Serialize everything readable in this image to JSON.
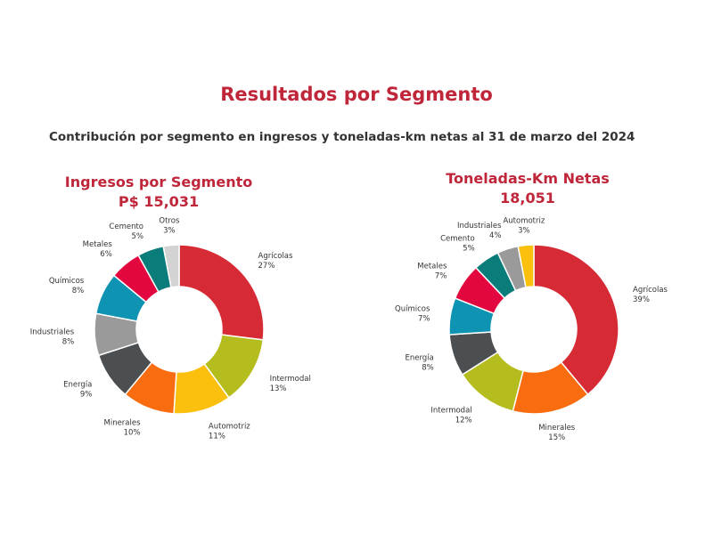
{
  "page": {
    "title": "Resultados por Segmento",
    "subtitle": "Contribución por segmento en ingresos y toneladas-km netas al 31 de marzo del 2024"
  },
  "chart_data": [
    {
      "type": "pie",
      "title": "Ingresos por Segmento",
      "subtitle": "P$ 15,031",
      "donut": true,
      "categories": [
        "Agrícolas",
        "Intermodal",
        "Automotriz",
        "Minerales",
        "Energía",
        "Industriales",
        "Químicos",
        "Metales",
        "Cemento",
        "Otros"
      ],
      "labels": [
        "27%",
        "13%",
        "11%",
        "10%",
        "9%",
        "8%",
        "8%",
        "6%",
        "5%",
        "3%"
      ],
      "values": [
        27,
        13,
        11,
        10,
        9,
        8,
        8,
        6,
        5,
        3
      ],
      "colors": [
        "#d62b35",
        "#b5bd1e",
        "#fbbf0e",
        "#f96c10",
        "#4b4f52",
        "#9a9a9a",
        "#0f93b3",
        "#e2083f",
        "#0a7d7b",
        "#d3d3d3"
      ]
    },
    {
      "type": "pie",
      "title": "Toneladas-Km Netas",
      "subtitle": "18,051",
      "donut": true,
      "categories": [
        "Agrícolas",
        "Minerales",
        "Intermodal",
        "Energía",
        "Químicos",
        "Metales",
        "Cemento",
        "Industriales",
        "Automotriz"
      ],
      "labels": [
        "39%",
        "15%",
        "12%",
        "8%",
        "7%",
        "7%",
        "5%",
        "4%",
        "3%"
      ],
      "values": [
        39,
        15,
        12,
        8,
        7,
        7,
        5,
        4,
        3
      ],
      "colors": [
        "#d62b35",
        "#f96c10",
        "#b5bd1e",
        "#4b4f52",
        "#0f93b3",
        "#e2083f",
        "#0a7d7b",
        "#9a9a9a",
        "#fbbf0e"
      ]
    }
  ]
}
